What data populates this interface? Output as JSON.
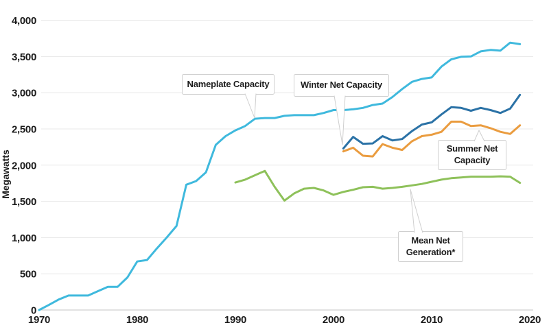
{
  "chart_data": {
    "type": "line",
    "title": "",
    "xlabel": "",
    "ylabel": "Megawatts",
    "xlim": [
      1970,
      2020
    ],
    "ylim": [
      0,
      4000
    ],
    "x_ticks": [
      1970,
      1980,
      1990,
      2000,
      2010,
      2020
    ],
    "y_ticks": [
      0,
      500,
      1000,
      1500,
      2000,
      2500,
      3000,
      3500,
      4000
    ],
    "grid": "horizontal only, light gray",
    "legend_position": "inline callout labels with leader pointers",
    "series": [
      {
        "name": "Nameplate Capacity",
        "color": "#3fb9dd",
        "x_start": 1970,
        "x_end": 2019,
        "values": [
          0,
          70,
          145,
          200,
          200,
          200,
          260,
          320,
          320,
          450,
          670,
          690,
          850,
          1000,
          1160,
          1730,
          1780,
          1900,
          2280,
          2400,
          2480,
          2540,
          2640,
          2650,
          2650,
          2680,
          2690,
          2690,
          2690,
          2720,
          2760,
          2760,
          2770,
          2790,
          2830,
          2850,
          2940,
          3050,
          3150,
          3190,
          3210,
          3360,
          3460,
          3495,
          3500,
          3570,
          3590,
          3580,
          3690,
          3670
        ]
      },
      {
        "name": "Winter Net Capacity",
        "color": "#2b72a6",
        "x_start": 2001,
        "x_end": 2019,
        "values": [
          2230,
          2390,
          2295,
          2300,
          2400,
          2340,
          2360,
          2470,
          2560,
          2590,
          2700,
          2800,
          2790,
          2750,
          2790,
          2760,
          2720,
          2780,
          2970
        ]
      },
      {
        "name": "Summer Net Capacity",
        "color": "#ea9c3f",
        "x_start": 2001,
        "x_end": 2019,
        "values": [
          2190,
          2240,
          2130,
          2120,
          2290,
          2240,
          2210,
          2330,
          2400,
          2420,
          2460,
          2600,
          2600,
          2540,
          2550,
          2510,
          2460,
          2430,
          2550
        ]
      },
      {
        "name": "Mean Net Generation*",
        "color": "#8ec15a",
        "x_start": 1990,
        "x_end": 2019,
        "values": [
          1760,
          1800,
          1860,
          1920,
          1700,
          1510,
          1610,
          1675,
          1685,
          1650,
          1590,
          1630,
          1660,
          1695,
          1700,
          1675,
          1685,
          1700,
          1720,
          1740,
          1770,
          1800,
          1820,
          1830,
          1840,
          1840,
          1840,
          1845,
          1840,
          1755
        ]
      }
    ],
    "annotations": [
      {
        "label": "Nameplate Capacity",
        "points_to_series": "Nameplate Capacity",
        "points_to_year": 1992
      },
      {
        "label": "Winter Net Capacity",
        "points_to_series": "Winter Net Capacity",
        "points_to_year": 2001
      },
      {
        "label": "Summer Net\nCapacity",
        "points_to_series": "Summer Net Capacity",
        "points_to_year": 2014
      },
      {
        "label": "Mean Net\nGeneration*",
        "points_to_series": "Mean Net Generation*",
        "points_to_year": 2008
      }
    ]
  },
  "axis": {
    "ylabel": "Megawatts"
  },
  "callouts": {
    "nameplate": {
      "label": "Nameplate Capacity"
    },
    "winter": {
      "label": "Winter Net Capacity"
    },
    "summer": {
      "label": "Summer Net\nCapacity"
    },
    "mean": {
      "label": "Mean Net\nGeneration*"
    }
  },
  "colors": {
    "nameplate": "#3fb9dd",
    "winter": "#2b72a6",
    "summer": "#ea9c3f",
    "mean": "#8ec15a",
    "grid": "#e8e8e8",
    "zero_line": "#c6c6c6",
    "text": "#1b1b1b",
    "callout_border": "#cfcfcf",
    "callout_bg": "#ffffff"
  }
}
